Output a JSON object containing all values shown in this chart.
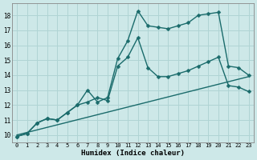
{
  "title": "",
  "xlabel": "Humidex (Indice chaleur)",
  "ylabel": "",
  "background_color": "#cde8e8",
  "grid_color": "#b0d4d4",
  "line_color": "#1a6b6b",
  "xlim": [
    -0.5,
    23.5
  ],
  "ylim": [
    9.5,
    18.8
  ],
  "yticks": [
    10,
    11,
    12,
    13,
    14,
    15,
    16,
    17,
    18
  ],
  "xticks": [
    0,
    1,
    2,
    3,
    4,
    5,
    6,
    7,
    8,
    9,
    10,
    11,
    12,
    13,
    14,
    15,
    16,
    17,
    18,
    19,
    20,
    21,
    22,
    23
  ],
  "series": [
    {
      "x": [
        0,
        1,
        2,
        3,
        4,
        5,
        6,
        7,
        8,
        9,
        10,
        11,
        12,
        13,
        14,
        15,
        16,
        17,
        18,
        19,
        20,
        21,
        22,
        23
      ],
      "y": [
        9.9,
        10.1,
        10.8,
        11.1,
        11.0,
        11.5,
        12.0,
        13.0,
        12.2,
        12.5,
        15.1,
        16.3,
        18.3,
        17.3,
        17.2,
        17.1,
        17.3,
        17.5,
        18.0,
        18.1,
        18.2,
        14.6,
        14.5,
        14.0
      ],
      "marker": "D",
      "markersize": 2.5,
      "linewidth": 1.0,
      "has_marker": true
    },
    {
      "x": [
        0,
        1,
        2,
        3,
        4,
        5,
        6,
        7,
        8,
        9,
        10,
        11,
        12,
        13,
        14,
        15,
        16,
        17,
        18,
        19,
        20,
        21,
        22,
        23
      ],
      "y": [
        9.9,
        10.1,
        10.8,
        11.1,
        11.0,
        11.5,
        12.0,
        12.2,
        12.5,
        12.3,
        14.6,
        15.2,
        16.5,
        14.5,
        13.9,
        13.9,
        14.1,
        14.3,
        14.6,
        14.9,
        15.2,
        13.3,
        13.2,
        12.9
      ],
      "marker": "D",
      "markersize": 2.5,
      "linewidth": 1.0,
      "has_marker": true
    },
    {
      "x": [
        0,
        23
      ],
      "y": [
        10.0,
        13.9
      ],
      "marker": null,
      "markersize": 0,
      "linewidth": 1.0,
      "has_marker": false
    }
  ]
}
